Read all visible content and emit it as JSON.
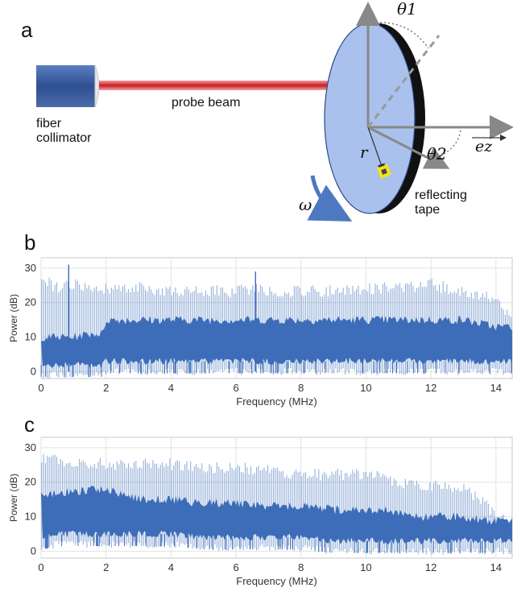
{
  "panel_a": {
    "letter": "a",
    "labels": {
      "collimator": "fiber\ncollimator",
      "probe_beam": "probe beam",
      "reflecting_tape": "reflecting\ntape",
      "r": "r",
      "omega": "ω",
      "theta1": "θ1",
      "theta2": "θ2",
      "ez": "ez"
    },
    "colors": {
      "collimator": "#3b5fa0",
      "beam": "#d6262c",
      "disk_face": "#a9c1ec",
      "disk_edge": "#111111",
      "tape": "#f4e21c",
      "axis": "#888888",
      "omega_arrow": "#4e79c0"
    }
  },
  "chart_data": [
    {
      "panel": "b",
      "type": "line",
      "xlabel": "Frequency (MHz)",
      "ylabel": "Power (dB)",
      "xlim": [
        0,
        14.5
      ],
      "ylim": [
        -2,
        33
      ],
      "xticks": [
        0,
        2,
        4,
        6,
        8,
        10,
        12,
        14
      ],
      "yticks": [
        0,
        10,
        20,
        30
      ],
      "grid": true,
      "color": "#3d6db8",
      "series": [
        {
          "values": {
            "x": [
              0,
              0.5,
              1,
              1.5,
              1.9,
              2,
              2.5,
              3,
              4,
              5,
              6,
              6.5,
              7,
              8,
              9,
              10,
              11,
              12,
              12.5,
              13,
              13.5,
              14,
              14.5
            ],
            "peak_envelope": [
              29,
              26,
              27,
              26,
              25,
              26,
              26,
              26,
              25,
              25,
              25,
              26,
              25,
              25,
              25,
              26,
              26,
              27,
              26,
              25,
              24,
              22,
              18
            ],
            "dense_band_top": [
              10,
              10,
              10,
              11,
              11,
              15,
              15,
              15,
              15,
              15,
              15,
              15,
              15,
              15,
              15,
              15,
              15,
              15,
              15,
              15,
              14,
              13,
              13
            ],
            "noise_floor": [
              0,
              0,
              0,
              0,
              0,
              1,
              1,
              1,
              1,
              1,
              1,
              1,
              1,
              1,
              1,
              1,
              1,
              1,
              1,
              1,
              1,
              1,
              1
            ]
          }
        }
      ],
      "annotations": [
        {
          "x": 0.85,
          "y": 31
        },
        {
          "x": 6.6,
          "y": 29
        }
      ]
    },
    {
      "panel": "c",
      "type": "line",
      "xlabel": "Frequency (MHz)",
      "ylabel": "Power (dB)",
      "xlim": [
        0,
        14.5
      ],
      "ylim": [
        -2,
        33
      ],
      "xticks": [
        0,
        2,
        4,
        6,
        8,
        10,
        12,
        14
      ],
      "yticks": [
        0,
        10,
        20,
        30
      ],
      "grid": true,
      "color": "#3d6db8",
      "series": [
        {
          "values": {
            "x": [
              0,
              0.5,
              1,
              1.5,
              2,
              3,
              4,
              5,
              6,
              7,
              8,
              9,
              10,
              10.5,
              11,
              11.5,
              12,
              12.5,
              13,
              13.5,
              14,
              14.5
            ],
            "peak_envelope": [
              29,
              28,
              27,
              27,
              27,
              27,
              27,
              26,
              26,
              25,
              24,
              24,
              24,
              23,
              22,
              21,
              21,
              20,
              20,
              17,
              12,
              10
            ],
            "dense_band_top": [
              16,
              17,
              17,
              18,
              18,
              15,
              15,
              14,
              14,
              13,
              13,
              12,
              12,
              12,
              11,
              10,
              10,
              10,
              10,
              9,
              9,
              9
            ],
            "noise_floor": [
              2,
              3,
              3,
              3,
              3,
              3,
              3,
              2,
              2,
              2,
              2,
              1,
              1,
              1,
              1,
              1,
              1,
              1,
              1,
              1,
              1,
              1
            ]
          }
        }
      ]
    }
  ],
  "panel_b": {
    "letter": "b"
  },
  "panel_c": {
    "letter": "c"
  }
}
